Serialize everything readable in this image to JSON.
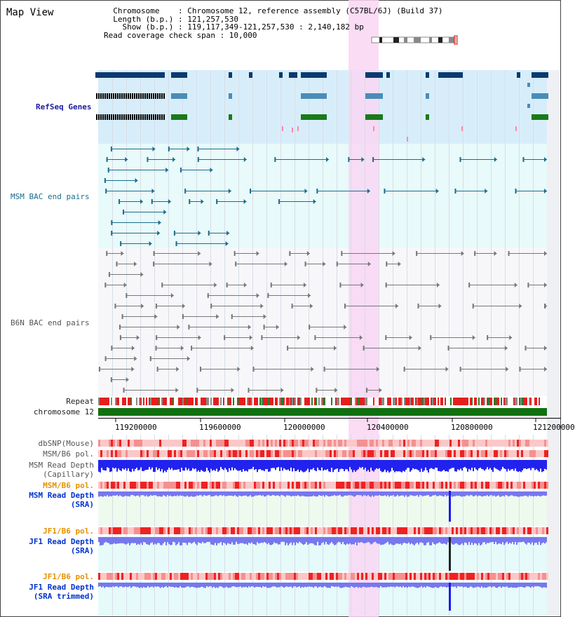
{
  "header": {
    "title": "Map View",
    "info_lines": [
      "  Chromosome    : Chromosome 12, reference assembly (C57BL/6J) (Build 37)",
      "  Length (b.p.) : 121,257,530",
      "    Show (b.p.) : 119,117,349-121,257,530 : 2,140,182 bp",
      "Read coverage check span : 10,000"
    ]
  },
  "tracks": {
    "refseq": "RefSeq Genes",
    "msm_bac": "MSM BAC end pairs",
    "b6n_bac": "B6N BAC end pairs",
    "repeat": "Repeat",
    "chromosome": "chromosome 12",
    "dbsnp": "dbSNP(Mouse)",
    "msm_b6_pol_1": "MSM/B6 pol.",
    "msm_read_depth_cap_1": "MSM Read Depth",
    "msm_read_depth_cap_2": "(Capillary)",
    "msm_b6_pol_2": "MSM/B6 pol.",
    "msm_read_depth_sra_1": "MSM Read Depth",
    "msm_read_depth_sra_2": "(SRA)",
    "jf1_b6_pol_1": "JF1/B6 pol.",
    "jf1_read_depth_1": "JF1 Read Depth",
    "jf1_read_depth_2": "(SRA)",
    "jf1_b6_pol_2": "JF1/B6 pol.",
    "jf1_read_depth_trim_1": "JF1 Read Depth",
    "jf1_read_depth_trim_2": "(SRA trimmed)"
  },
  "axis": {
    "ticks": [
      "119200000",
      "119600000",
      "120000000",
      "120400000",
      "120800000",
      "121200000"
    ]
  },
  "colors": {
    "refseq_bg": "#d7eefa",
    "msm_bg": "#e8fafa",
    "b6n_bg": "#f7f7fa",
    "highlight": "#f9d6f3",
    "gene_navy": "#0c3a70",
    "gene_steel": "#4a8cb8",
    "gene_green": "#1a7a1a",
    "msm_pair": "#1a6c8c",
    "b6n_pair": "#777777",
    "chromosome": "#107010",
    "depth_blue": "#2222ee",
    "depth_light": "#7777ee",
    "pol_red": "#ee3333"
  }
}
